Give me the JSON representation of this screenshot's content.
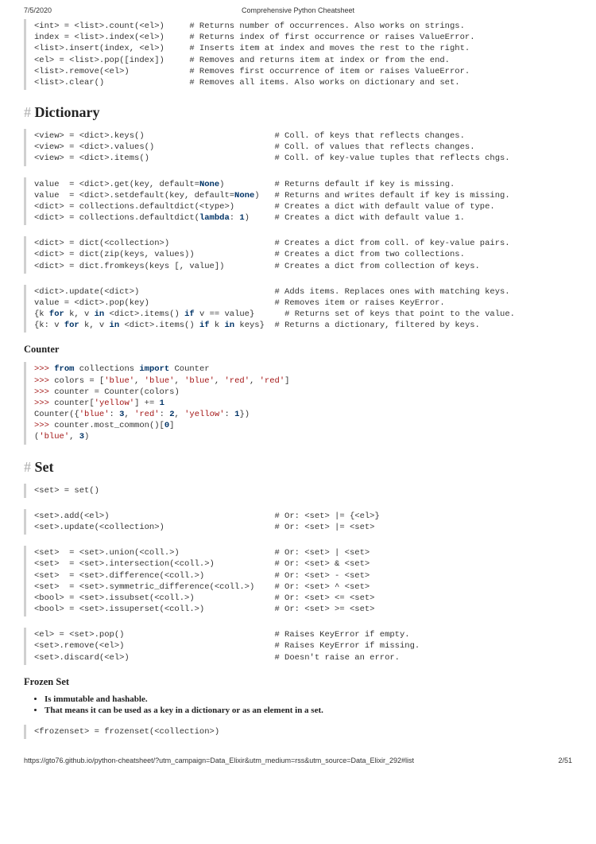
{
  "header": {
    "date": "7/5/2020",
    "title": "Comprehensive Python Cheatsheet"
  },
  "sections": {
    "list_block": {
      "l1": "<int> = <list>.count(<el>)     # Returns number of occurrences. Also works on strings.",
      "l2": "index = <list>.index(<el>)     # Returns index of first occurrence or raises ValueError.",
      "l3": "<list>.insert(index, <el>)     # Inserts item at index and moves the rest to the right.",
      "l4": "<el> = <list>.pop([index])     # Removes and returns item at index or from the end.",
      "l5": "<list>.remove(<el>)            # Removes first occurrence of item or raises ValueError.",
      "l6": "<list>.clear()                 # Removes all items. Also works on dictionary and set."
    },
    "dict_heading": "Dictionary",
    "dict_b1": {
      "l1": "<view> = <dict>.keys()                          # Coll. of keys that reflects changes.",
      "l2": "<view> = <dict>.values()                        # Coll. of values that reflects changes.",
      "l3": "<view> = <dict>.items()                         # Coll. of key-value tuples that reflects chgs."
    },
    "dict_b2": {
      "l1a": "value  = <dict>.get(key, default=",
      "l1b": "None",
      "l1c": ")          # Returns default if key is missing.",
      "l2a": "value  = <dict>.setdefault(key, default=",
      "l2b": "None",
      "l2c": ")   # Returns and writes default if key is missing.",
      "l3": "<dict> = collections.defaultdict(<type>)        # Creates a dict with default value of type.",
      "l4a": "<dict> = collections.defaultdict(",
      "l4b": "lambda",
      "l4c": ": ",
      "l4d": "1",
      "l4e": ")     # Creates a dict with default value 1."
    },
    "dict_b3": {
      "l1": "<dict> = dict(<collection>)                     # Creates a dict from coll. of key-value pairs.",
      "l2": "<dict> = dict(zip(keys, values))                # Creates a dict from two collections.",
      "l3": "<dict> = dict.fromkeys(keys [, value])          # Creates a dict from collection of keys."
    },
    "dict_b4": {
      "l1": "<dict>.update(<dict>)                           # Adds items. Replaces ones with matching keys.",
      "l2": "value = <dict>.pop(key)                         # Removes item or raises KeyError.",
      "l3a": "{k ",
      "l3b": "for",
      "l3c": " k, v ",
      "l3d": "in",
      "l3e": " <dict>.items() ",
      "l3f": "if",
      "l3g": " v == value}      # Returns set of keys that point to the value.",
      "l4a": "{k: v ",
      "l4b": "for",
      "l4c": " k, v ",
      "l4d": "in",
      "l4e": " <dict>.items() ",
      "l4f": "if",
      "l4g": " k ",
      "l4h": "in",
      "l4i": " keys}  # Returns a dictionary, filtered by keys."
    },
    "counter_heading": "Counter",
    "counter_block": {
      "p": ">>> ",
      "l1a": "from",
      "l1b": " collections ",
      "l1c": "import",
      "l1d": " Counter",
      "l2a": "colors = [",
      "l2b": "'blue'",
      "l2c": ", ",
      "l2d": "'blue'",
      "l2e": ", ",
      "l2f": "'blue'",
      "l2g": ", ",
      "l2h": "'red'",
      "l2i": ", ",
      "l2j": "'red'",
      "l2k": "]",
      "l3": "counter = Counter(colors)",
      "l4a": "counter[",
      "l4b": "'yellow'",
      "l4c": "] += ",
      "l4d": "1",
      "l5a": "Counter({",
      "l5b": "'blue'",
      "l5c": ": ",
      "l5d": "3",
      "l5e": ", ",
      "l5f": "'red'",
      "l5g": ": ",
      "l5h": "2",
      "l5i": ", ",
      "l5j": "'yellow'",
      "l5k": ": ",
      "l5l": "1",
      "l5m": "})",
      "l6a": "counter.most_common()[",
      "l6b": "0",
      "l6c": "]",
      "l7a": "(",
      "l7b": "'blue'",
      "l7c": ", ",
      "l7d": "3",
      "l7e": ")"
    },
    "set_heading": "Set",
    "set_b1": "<set> = set()",
    "set_b2": {
      "l1": "<set>.add(<el>)                                 # Or: <set> |= {<el>}",
      "l2": "<set>.update(<collection>)                      # Or: <set> |= <set>"
    },
    "set_b3": {
      "l1": "<set>  = <set>.union(<coll.>)                   # Or: <set> | <set>",
      "l2": "<set>  = <set>.intersection(<coll.>)            # Or: <set> & <set>",
      "l3": "<set>  = <set>.difference(<coll.>)              # Or: <set> - <set>",
      "l4": "<set>  = <set>.symmetric_difference(<coll.>)    # Or: <set> ^ <set>",
      "l5": "<bool> = <set>.issubset(<coll.>)                # Or: <set> <= <set>",
      "l6": "<bool> = <set>.issuperset(<coll.>)              # Or: <set> >= <set>"
    },
    "set_b4": {
      "l1": "<el> = <set>.pop()                              # Raises KeyError if empty.",
      "l2": "<set>.remove(<el>)                              # Raises KeyError if missing.",
      "l3": "<set>.discard(<el>)                             # Doesn't raise an error."
    },
    "frozen_heading": "Frozen Set",
    "frozen_bullets": {
      "b1": "Is immutable and hashable.",
      "b2": "That means it can be used as a key in a dictionary or as an element in a set."
    },
    "frozen_block": "<frozenset> = frozenset(<collection>)"
  },
  "footer": {
    "url": "https://gto76.github.io/python-cheatsheet/?utm_campaign=Data_Elixir&utm_medium=rss&utm_source=Data_Elixir_292#list",
    "page": "2/51"
  }
}
